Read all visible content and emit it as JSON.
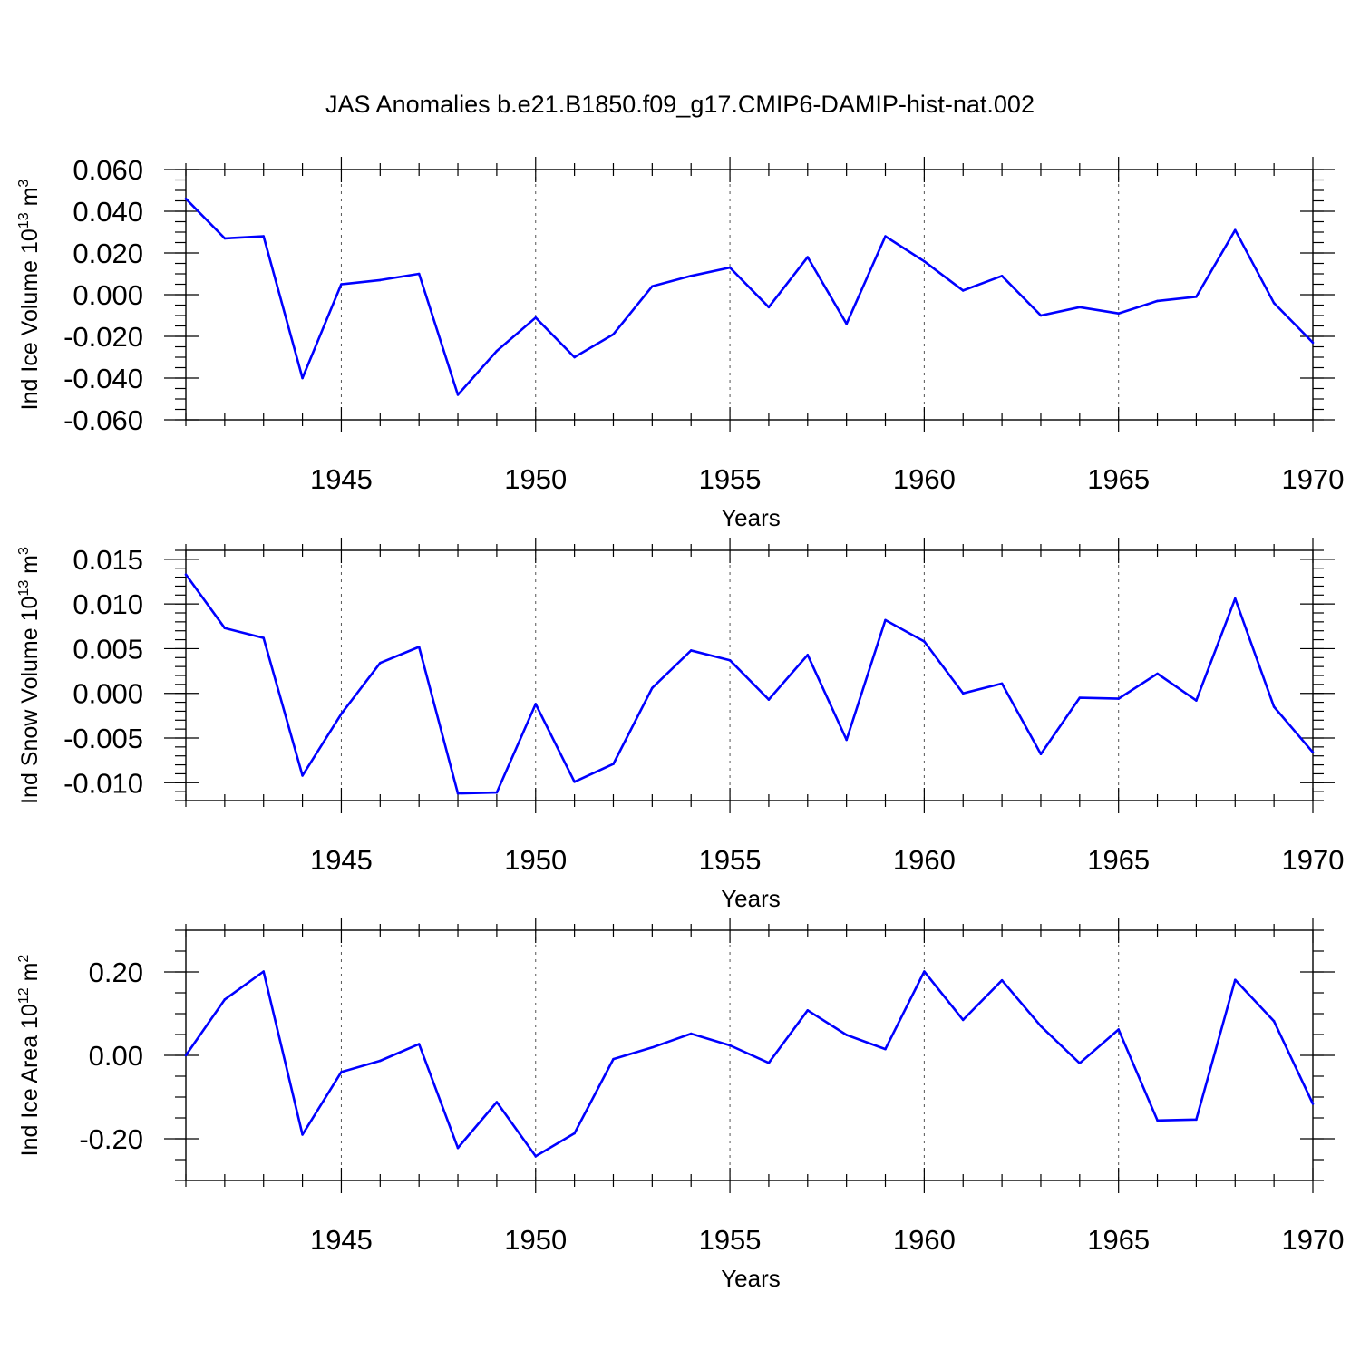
{
  "figure": {
    "title": "JAS Anomalies b.e21.B1850.f09_g17.CMIP6-DAMIP-hist-nat.002"
  },
  "colors": {
    "line": "#0000ff",
    "axis": "#000000",
    "grid": "#555555",
    "background": "#ffffff"
  },
  "chart_data": [
    {
      "type": "line",
      "xlabel": "Years",
      "ylabel": {
        "main": "Ind Ice Volume 10",
        "exp1": "13",
        "unit": " m",
        "exp2": "3"
      },
      "xlim": [
        1941,
        1970
      ],
      "ylim": [
        -0.06,
        0.06
      ],
      "x_ticks": [
        1945,
        1950,
        1955,
        1960,
        1965,
        1970
      ],
      "x_tick_labels": [
        "1945",
        "1950",
        "1955",
        "1960",
        "1965",
        "1970"
      ],
      "y_ticks": [
        -0.06,
        -0.04,
        -0.02,
        0.0,
        0.02,
        0.04,
        0.06
      ],
      "y_tick_labels": [
        "-0.060",
        "-0.040",
        "-0.020",
        "0.000",
        "0.020",
        "0.040",
        "0.060"
      ],
      "y_minor_step": 0.005,
      "grid": "x-dashed",
      "x": [
        1941,
        1942,
        1943,
        1944,
        1945,
        1946,
        1947,
        1948,
        1949,
        1950,
        1951,
        1952,
        1953,
        1954,
        1955,
        1956,
        1957,
        1958,
        1959,
        1960,
        1961,
        1962,
        1963,
        1964,
        1965,
        1966,
        1967,
        1968,
        1969,
        1970
      ],
      "series": [
        {
          "values": [
            0.046,
            0.027,
            0.028,
            -0.04,
            0.005,
            0.007,
            0.01,
            -0.048,
            -0.027,
            -0.011,
            -0.03,
            -0.019,
            0.004,
            0.009,
            0.013,
            -0.006,
            0.018,
            -0.014,
            0.028,
            0.016,
            0.002,
            0.009,
            -0.01,
            -0.006,
            -0.009,
            -0.003,
            -0.001,
            0.031,
            -0.004,
            -0.023
          ]
        }
      ]
    },
    {
      "type": "line",
      "xlabel": "Years",
      "ylabel": {
        "main": "Ind Snow Volume 10",
        "exp1": "13",
        "unit": " m",
        "exp2": "3"
      },
      "xlim": [
        1941,
        1970
      ],
      "ylim": [
        -0.012,
        0.016
      ],
      "x_ticks": [
        1945,
        1950,
        1955,
        1960,
        1965,
        1970
      ],
      "x_tick_labels": [
        "1945",
        "1950",
        "1955",
        "1960",
        "1965",
        "1970"
      ],
      "y_ticks": [
        -0.01,
        -0.005,
        0.0,
        0.005,
        0.01,
        0.015
      ],
      "y_tick_labels": [
        "-0.010",
        "-0.005",
        "0.000",
        "0.005",
        "0.010",
        "0.015"
      ],
      "y_minor_step": 0.001,
      "grid": "x-dashed",
      "x": [
        1941,
        1942,
        1943,
        1944,
        1945,
        1946,
        1947,
        1948,
        1949,
        1950,
        1951,
        1952,
        1953,
        1954,
        1955,
        1956,
        1957,
        1958,
        1959,
        1960,
        1961,
        1962,
        1963,
        1964,
        1965,
        1966,
        1967,
        1968,
        1969,
        1970
      ],
      "series": [
        {
          "values": [
            0.0133,
            0.0073,
            0.0062,
            -0.0092,
            -0.0023,
            0.0034,
            0.0052,
            -0.0112,
            -0.0111,
            -0.0012,
            -0.0099,
            -0.0079,
            0.0006,
            0.0048,
            0.0037,
            -0.0007,
            0.0043,
            -0.0052,
            0.0082,
            0.0058,
            0.0,
            0.0011,
            -0.0068,
            -0.0005,
            -0.0006,
            0.0022,
            -0.0008,
            0.0106,
            -0.0015,
            -0.0066
          ]
        }
      ]
    },
    {
      "type": "line",
      "xlabel": "Years",
      "ylabel": {
        "main": "Ind Ice Area 10",
        "exp1": "12",
        "unit": " m",
        "exp2": "2"
      },
      "xlim": [
        1941,
        1970
      ],
      "ylim": [
        -0.3,
        0.3
      ],
      "x_ticks": [
        1945,
        1950,
        1955,
        1960,
        1965,
        1970
      ],
      "x_tick_labels": [
        "1945",
        "1950",
        "1955",
        "1960",
        "1965",
        "1970"
      ],
      "y_ticks": [
        -0.2,
        0.0,
        0.2
      ],
      "y_tick_labels": [
        "-0.20",
        "0.00",
        "0.20"
      ],
      "y_minor_step": 0.05,
      "grid": "x-dashed",
      "x": [
        1941,
        1942,
        1943,
        1944,
        1945,
        1946,
        1947,
        1948,
        1949,
        1950,
        1951,
        1952,
        1953,
        1954,
        1955,
        1956,
        1957,
        1958,
        1959,
        1960,
        1961,
        1962,
        1963,
        1964,
        1965,
        1966,
        1967,
        1968,
        1969,
        1970
      ],
      "series": [
        {
          "values": [
            0.0,
            0.134,
            0.201,
            -0.19,
            -0.04,
            -0.013,
            0.027,
            -0.222,
            -0.112,
            -0.242,
            -0.187,
            -0.009,
            0.019,
            0.052,
            0.024,
            -0.018,
            0.108,
            0.049,
            0.015,
            0.201,
            0.085,
            0.18,
            0.07,
            -0.019,
            0.062,
            -0.156,
            -0.154,
            0.181,
            0.082,
            -0.116
          ]
        }
      ]
    }
  ]
}
